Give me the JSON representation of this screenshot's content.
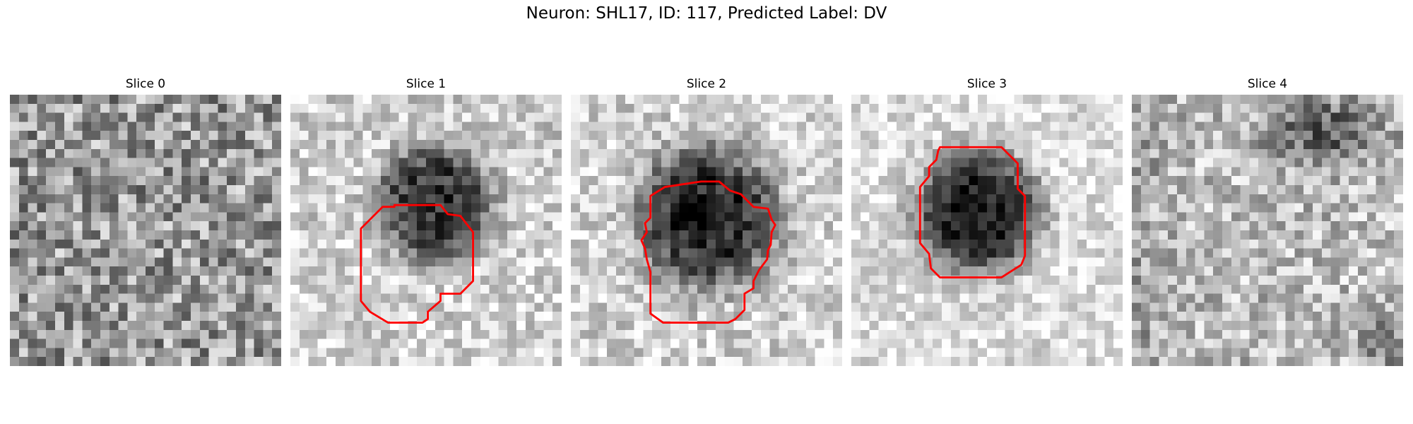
{
  "figure": {
    "title": "Neuron: SHL17, ID: 117, Predicted Label: DV",
    "contour_color": "#ff0000"
  },
  "panels": [
    {
      "title": "Slice 0",
      "has_contour": false
    },
    {
      "title": "Slice 1",
      "has_contour": true
    },
    {
      "title": "Slice 2",
      "has_contour": true
    },
    {
      "title": "Slice 3",
      "has_contour": true
    },
    {
      "title": "Slice 4",
      "has_contour": false
    }
  ]
}
